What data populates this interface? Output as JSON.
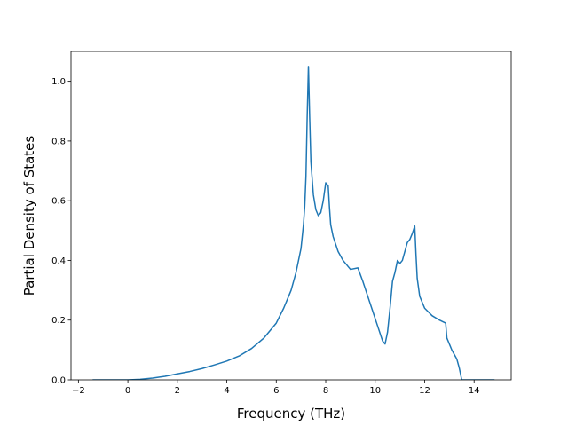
{
  "chart_data": {
    "type": "line",
    "title": "",
    "xlabel": "Frequency (THz)",
    "ylabel": "Partial Density of States",
    "xlim": [
      -2.3,
      15.5
    ],
    "ylim": [
      0.0,
      1.1
    ],
    "xticks": [
      -2,
      0,
      2,
      4,
      6,
      8,
      10,
      12,
      14
    ],
    "yticks": [
      0.0,
      0.2,
      0.4,
      0.6,
      0.8,
      1.0
    ],
    "xtick_labels": [
      "−2",
      "0",
      "2",
      "4",
      "6",
      "8",
      "10",
      "12",
      "14"
    ],
    "ytick_labels": [
      "0.0",
      "0.2",
      "0.4",
      "0.6",
      "0.8",
      "1.0"
    ],
    "grid": false,
    "legend": "none",
    "series": [
      {
        "color": "#1f77b4",
        "x": [
          -1.4,
          -1.0,
          0.0,
          0.5,
          1.0,
          1.5,
          2.0,
          2.5,
          3.0,
          3.5,
          4.0,
          4.5,
          5.0,
          5.5,
          6.0,
          6.3,
          6.4,
          6.6,
          6.8,
          7.0,
          7.1,
          7.15,
          7.2,
          7.25,
          7.3,
          7.35,
          7.4,
          7.5,
          7.6,
          7.7,
          7.8,
          7.9,
          8.0,
          8.1,
          8.15,
          8.2,
          8.3,
          8.5,
          8.7,
          9.0,
          9.3,
          9.5,
          9.7,
          9.9,
          10.1,
          10.3,
          10.4,
          10.5,
          10.6,
          10.7,
          10.8,
          10.9,
          11.0,
          11.1,
          11.2,
          11.3,
          11.4,
          11.5,
          11.6,
          11.65,
          11.7,
          11.8,
          12.0,
          12.3,
          12.6,
          12.85,
          12.9,
          13.1,
          13.3,
          13.4,
          13.5,
          13.7,
          14.0,
          14.8
        ],
        "y": [
          0.0,
          0.0,
          0.0,
          0.002,
          0.006,
          0.012,
          0.02,
          0.028,
          0.038,
          0.05,
          0.063,
          0.08,
          0.105,
          0.14,
          0.19,
          0.24,
          0.26,
          0.3,
          0.36,
          0.44,
          0.52,
          0.58,
          0.68,
          0.88,
          1.05,
          0.88,
          0.73,
          0.62,
          0.57,
          0.55,
          0.56,
          0.6,
          0.66,
          0.65,
          0.58,
          0.52,
          0.48,
          0.43,
          0.4,
          0.37,
          0.375,
          0.33,
          0.28,
          0.23,
          0.18,
          0.13,
          0.12,
          0.16,
          0.24,
          0.33,
          0.36,
          0.4,
          0.39,
          0.4,
          0.43,
          0.46,
          0.47,
          0.49,
          0.515,
          0.42,
          0.34,
          0.28,
          0.24,
          0.215,
          0.2,
          0.19,
          0.14,
          0.1,
          0.07,
          0.04,
          0.0,
          0.0,
          0.0,
          0.0
        ]
      }
    ]
  }
}
